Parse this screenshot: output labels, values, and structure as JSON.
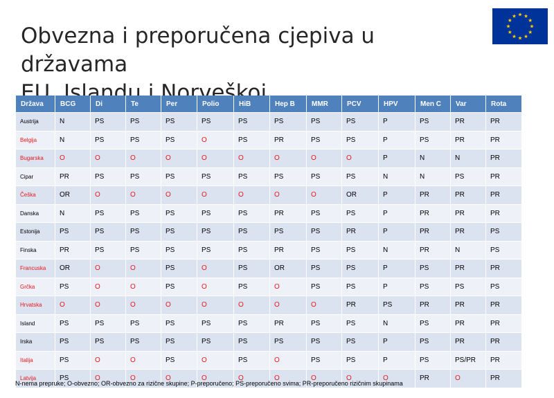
{
  "title_line1": "Obvezna i preporučena cjepiva u državama",
  "title_line2": "EU, Islandu i Norveškoj",
  "flag_icon": "eu-flag-icon",
  "colors": {
    "header": "#4f81bd",
    "row_odd": "#dbe3f0",
    "row_even": "#eef1f8",
    "mandatory": "#e8171a"
  },
  "table": {
    "headers": [
      "Država",
      "BCG",
      "Di",
      "Te",
      "Per",
      "Polio",
      "HiB",
      "Hep B",
      "MMR",
      "PCV",
      "HPV",
      "Men C",
      "Var",
      "Rota"
    ],
    "rows": [
      {
        "country": "Austrija",
        "mandatory": false,
        "values": [
          "N",
          "PS",
          "PS",
          "PS",
          "PS",
          "PS",
          "PS",
          "PS",
          "PS",
          "P",
          "PS",
          "PR",
          "PR"
        ]
      },
      {
        "country": "Belgija",
        "mandatory": true,
        "values": [
          "N",
          "PS",
          "PS",
          "PS",
          "O",
          "PS",
          "PR",
          "PS",
          "PS",
          "P",
          "PS",
          "PR",
          "PR"
        ]
      },
      {
        "country": "Bugarska",
        "mandatory": true,
        "values": [
          "O",
          "O",
          "O",
          "O",
          "O",
          "O",
          "O",
          "O",
          "O",
          "P",
          "N",
          "N",
          "PR"
        ]
      },
      {
        "country": "Cipar",
        "mandatory": false,
        "values": [
          "PR",
          "PS",
          "PS",
          "PS",
          "PS",
          "PS",
          "PS",
          "PS",
          "PS",
          "N",
          "N",
          "PS",
          "PR"
        ]
      },
      {
        "country": "Češka",
        "mandatory": true,
        "values": [
          "OR",
          "O",
          "O",
          "O",
          "O",
          "O",
          "O",
          "O",
          "OR",
          "P",
          "PR",
          "PR",
          "PR"
        ]
      },
      {
        "country": "Danska",
        "mandatory": false,
        "values": [
          "N",
          "PS",
          "PS",
          "PS",
          "PS",
          "PS",
          "PR",
          "PS",
          "PS",
          "P",
          "PR",
          "PR",
          "PR"
        ]
      },
      {
        "country": "Estonija",
        "mandatory": false,
        "values": [
          "PS",
          "PS",
          "PS",
          "PS",
          "PS",
          "PS",
          "PS",
          "PS",
          "PR",
          "P",
          "PR",
          "PR",
          "PS"
        ]
      },
      {
        "country": "Finska",
        "mandatory": false,
        "values": [
          "PR",
          "PS",
          "PS",
          "PS",
          "PS",
          "PS",
          "PR",
          "PS",
          "PS",
          "N",
          "PR",
          "N",
          "PS"
        ]
      },
      {
        "country": "Francuska",
        "mandatory": true,
        "values": [
          "OR",
          "O",
          "O",
          "PS",
          "O",
          "PS",
          "OR",
          "PS",
          "PS",
          "P",
          "PS",
          "PR",
          "PR"
        ]
      },
      {
        "country": "Grčka",
        "mandatory": true,
        "values": [
          "PS",
          "O",
          "O",
          "PS",
          "O",
          "PS",
          "O",
          "PS",
          "PS",
          "P",
          "PS",
          "PS",
          "PS"
        ]
      },
      {
        "country": "Hrvatska",
        "mandatory": true,
        "values": [
          "O",
          "O",
          "O",
          "O",
          "O",
          "O",
          "O",
          "O",
          "PR",
          "PS",
          "PR",
          "PR",
          "PR"
        ]
      },
      {
        "country": "Island",
        "mandatory": false,
        "values": [
          "PS",
          "PS",
          "PS",
          "PS",
          "PS",
          "PS",
          "PR",
          "PS",
          "PS",
          "N",
          "PS",
          "PR",
          "PR"
        ]
      },
      {
        "country": "Irska",
        "mandatory": false,
        "values": [
          "PS",
          "PS",
          "PS",
          "PS",
          "PS",
          "PS",
          "PS",
          "PS",
          "PS",
          "P",
          "PS",
          "PR",
          "PR"
        ]
      },
      {
        "country": "Italija",
        "mandatory": true,
        "values": [
          "PS",
          "O",
          "O",
          "PS",
          "O",
          "PS",
          "O",
          "PS",
          "PS",
          "P",
          "PS",
          "PS/PR",
          "PR"
        ]
      },
      {
        "country": "Latvija",
        "mandatory": true,
        "values": [
          "PS",
          "O",
          "O",
          "O",
          "O",
          "O",
          "O",
          "O",
          "O",
          "O",
          "PR",
          "O",
          "PR"
        ]
      }
    ]
  },
  "footnote": "N-nema prepruke; O-obvezno; OR-obvezno za rizične skupine; P-preporučeno; PS-preporučeno svima; PR-preporučeno rizičnim skupinama"
}
